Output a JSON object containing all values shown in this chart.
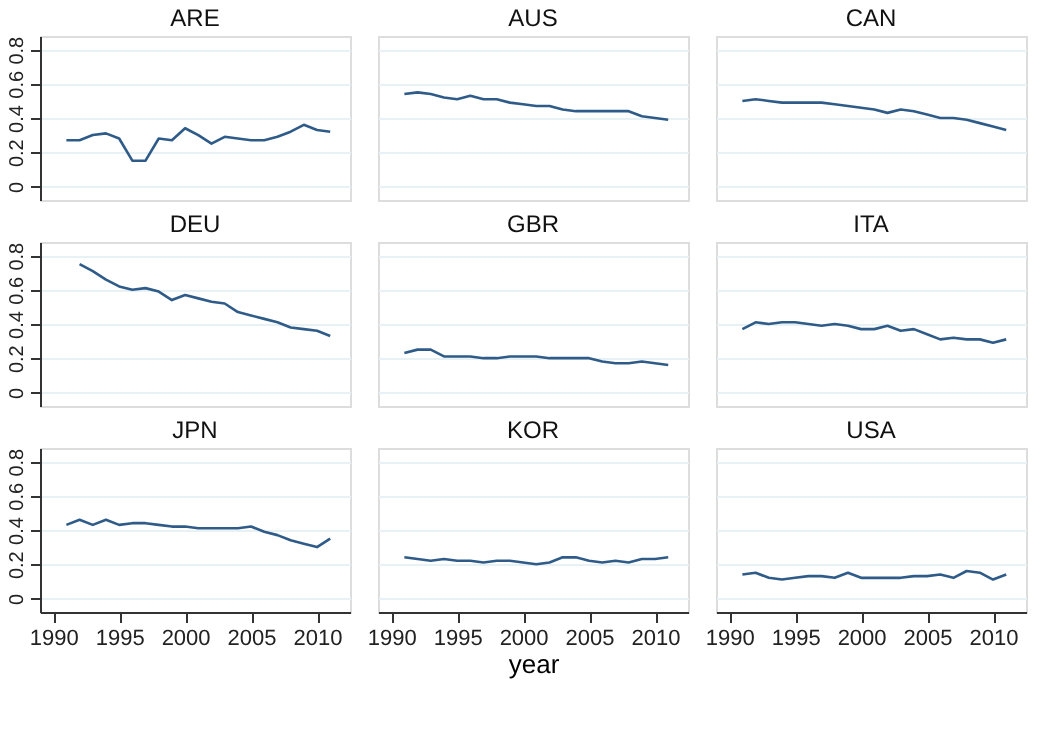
{
  "chart_data": [
    {
      "type": "line",
      "title": "ARE",
      "x": [
        1991,
        1992,
        1993,
        1994,
        1995,
        1996,
        1997,
        1998,
        1999,
        2000,
        2001,
        2002,
        2003,
        2004,
        2005,
        2006,
        2007,
        2008,
        2009,
        2010,
        2011
      ],
      "values": [
        0.27,
        0.27,
        0.3,
        0.31,
        0.28,
        0.15,
        0.15,
        0.28,
        0.27,
        0.34,
        0.3,
        0.25,
        0.29,
        0.28,
        0.27,
        0.27,
        0.29,
        0.32,
        0.36,
        0.33,
        0.32
      ],
      "color": "#2f5b88",
      "xlim": [
        1989,
        2012.5
      ],
      "xticks": [
        1990,
        1995,
        2000,
        2005,
        2010
      ],
      "ylim": [
        -0.08,
        0.88
      ],
      "yticks": [
        0,
        0.2,
        0.4,
        0.6,
        0.8
      ],
      "grid": "y",
      "tick_labels": "y"
    },
    {
      "type": "line",
      "title": "AUS",
      "x": [
        1991,
        1992,
        1993,
        1994,
        1995,
        1996,
        1997,
        1998,
        1999,
        2000,
        2001,
        2002,
        2003,
        2004,
        2005,
        2006,
        2007,
        2008,
        2009,
        2010,
        2011
      ],
      "values": [
        0.54,
        0.55,
        0.54,
        0.52,
        0.51,
        0.53,
        0.51,
        0.51,
        0.49,
        0.48,
        0.47,
        0.47,
        0.45,
        0.44,
        0.44,
        0.44,
        0.44,
        0.44,
        0.41,
        0.4,
        0.39
      ],
      "color": "#2f5b88",
      "xlim": [
        1989,
        2012.5
      ],
      "xticks": [
        1990,
        1995,
        2000,
        2005,
        2010
      ],
      "ylim": [
        -0.08,
        0.88
      ],
      "yticks": [
        0,
        0.2,
        0.4,
        0.6,
        0.8
      ],
      "grid": "y",
      "tick_labels": false
    },
    {
      "type": "line",
      "title": "CAN",
      "x": [
        1991,
        1992,
        1993,
        1994,
        1995,
        1996,
        1997,
        1998,
        1999,
        2000,
        2001,
        2002,
        2003,
        2004,
        2005,
        2006,
        2007,
        2008,
        2009,
        2010,
        2011
      ],
      "values": [
        0.5,
        0.51,
        0.5,
        0.49,
        0.49,
        0.49,
        0.49,
        0.48,
        0.47,
        0.46,
        0.45,
        0.43,
        0.45,
        0.44,
        0.42,
        0.4,
        0.4,
        0.39,
        0.37,
        0.35,
        0.33
      ],
      "color": "#2f5b88",
      "xlim": [
        1989,
        2012.5
      ],
      "xticks": [
        1990,
        1995,
        2000,
        2005,
        2010
      ],
      "ylim": [
        -0.08,
        0.88
      ],
      "yticks": [
        0,
        0.2,
        0.4,
        0.6,
        0.8
      ],
      "grid": "y",
      "tick_labels": false
    },
    {
      "type": "line",
      "title": "DEU",
      "x": [
        1992,
        1993,
        1994,
        1995,
        1996,
        1997,
        1998,
        1999,
        2000,
        2001,
        2002,
        2003,
        2004,
        2005,
        2006,
        2007,
        2008,
        2009,
        2010,
        2011
      ],
      "values": [
        0.75,
        0.71,
        0.66,
        0.62,
        0.6,
        0.61,
        0.59,
        0.54,
        0.57,
        0.55,
        0.53,
        0.52,
        0.47,
        0.45,
        0.43,
        0.41,
        0.38,
        0.37,
        0.36,
        0.33
      ],
      "color": "#2f5b88",
      "xlim": [
        1989,
        2012.5
      ],
      "xticks": [
        1990,
        1995,
        2000,
        2005,
        2010
      ],
      "ylim": [
        -0.08,
        0.88
      ],
      "yticks": [
        0,
        0.2,
        0.4,
        0.6,
        0.8
      ],
      "grid": "y",
      "tick_labels": "y"
    },
    {
      "type": "line",
      "title": "GBR",
      "x": [
        1991,
        1992,
        1993,
        1994,
        1995,
        1996,
        1997,
        1998,
        1999,
        2000,
        2001,
        2002,
        2003,
        2004,
        2005,
        2006,
        2007,
        2008,
        2009,
        2010,
        2011
      ],
      "values": [
        0.23,
        0.25,
        0.25,
        0.21,
        0.21,
        0.21,
        0.2,
        0.2,
        0.21,
        0.21,
        0.21,
        0.2,
        0.2,
        0.2,
        0.2,
        0.18,
        0.17,
        0.17,
        0.18,
        0.17,
        0.16
      ],
      "color": "#2f5b88",
      "xlim": [
        1989,
        2012.5
      ],
      "xticks": [
        1990,
        1995,
        2000,
        2005,
        2010
      ],
      "ylim": [
        -0.08,
        0.88
      ],
      "yticks": [
        0,
        0.2,
        0.4,
        0.6,
        0.8
      ],
      "grid": "y",
      "tick_labels": false
    },
    {
      "type": "line",
      "title": "ITA",
      "x": [
        1991,
        1992,
        1993,
        1994,
        1995,
        1996,
        1997,
        1998,
        1999,
        2000,
        2001,
        2002,
        2003,
        2004,
        2005,
        2006,
        2007,
        2008,
        2009,
        2010,
        2011
      ],
      "values": [
        0.37,
        0.41,
        0.4,
        0.41,
        0.41,
        0.4,
        0.39,
        0.4,
        0.39,
        0.37,
        0.37,
        0.39,
        0.36,
        0.37,
        0.34,
        0.31,
        0.32,
        0.31,
        0.31,
        0.29,
        0.31
      ],
      "color": "#2f5b88",
      "xlim": [
        1989,
        2012.5
      ],
      "xticks": [
        1990,
        1995,
        2000,
        2005,
        2010
      ],
      "ylim": [
        -0.08,
        0.88
      ],
      "yticks": [
        0,
        0.2,
        0.4,
        0.6,
        0.8
      ],
      "grid": "y",
      "tick_labels": false
    },
    {
      "type": "line",
      "title": "JPN",
      "x": [
        1991,
        1992,
        1993,
        1994,
        1995,
        1996,
        1997,
        1998,
        1999,
        2000,
        2001,
        2002,
        2003,
        2004,
        2005,
        2006,
        2007,
        2008,
        2009,
        2010,
        2011
      ],
      "values": [
        0.43,
        0.46,
        0.43,
        0.46,
        0.43,
        0.44,
        0.44,
        0.43,
        0.42,
        0.42,
        0.41,
        0.41,
        0.41,
        0.41,
        0.42,
        0.39,
        0.37,
        0.34,
        0.32,
        0.3,
        0.35
      ],
      "color": "#2f5b88",
      "xlim": [
        1989,
        2012.5
      ],
      "xticks": [
        1990,
        1995,
        2000,
        2005,
        2010
      ],
      "ylim": [
        -0.08,
        0.88
      ],
      "yticks": [
        0,
        0.2,
        0.4,
        0.6,
        0.8
      ],
      "grid": "y"
    },
    {
      "type": "line",
      "title": "KOR",
      "xlabel": "year",
      "x": [
        1991,
        1992,
        1993,
        1994,
        1995,
        1996,
        1997,
        1998,
        1999,
        2000,
        2001,
        2002,
        2003,
        2004,
        2005,
        2006,
        2007,
        2008,
        2009,
        2010,
        2011
      ],
      "values": [
        0.24,
        0.23,
        0.22,
        0.23,
        0.22,
        0.22,
        0.21,
        0.22,
        0.22,
        0.21,
        0.2,
        0.21,
        0.24,
        0.24,
        0.22,
        0.21,
        0.22,
        0.21,
        0.23,
        0.23,
        0.24
      ],
      "color": "#2f5b88",
      "xlim": [
        1989,
        2012.5
      ],
      "xticks": [
        1990,
        1995,
        2000,
        2005,
        2010
      ],
      "ylim": [
        -0.08,
        0.88
      ],
      "yticks": [
        0,
        0.2,
        0.4,
        0.6,
        0.8
      ],
      "grid": "y",
      "tick_labels": "x"
    },
    {
      "type": "line",
      "title": "USA",
      "x": [
        1991,
        1992,
        1993,
        1994,
        1995,
        1996,
        1997,
        1998,
        1999,
        2000,
        2001,
        2002,
        2003,
        2004,
        2005,
        2006,
        2007,
        2008,
        2009,
        2010,
        2011
      ],
      "values": [
        0.14,
        0.15,
        0.12,
        0.11,
        0.12,
        0.13,
        0.13,
        0.12,
        0.15,
        0.12,
        0.12,
        0.12,
        0.12,
        0.13,
        0.13,
        0.14,
        0.12,
        0.16,
        0.15,
        0.11,
        0.14
      ],
      "color": "#2f5b88",
      "xlim": [
        1989,
        2012.5
      ],
      "xticks": [
        1990,
        1995,
        2000,
        2005,
        2010
      ],
      "ylim": [
        -0.08,
        0.88
      ],
      "yticks": [
        0,
        0.2,
        0.4,
        0.6,
        0.8
      ],
      "grid": "y",
      "tick_labels": "x"
    }
  ]
}
